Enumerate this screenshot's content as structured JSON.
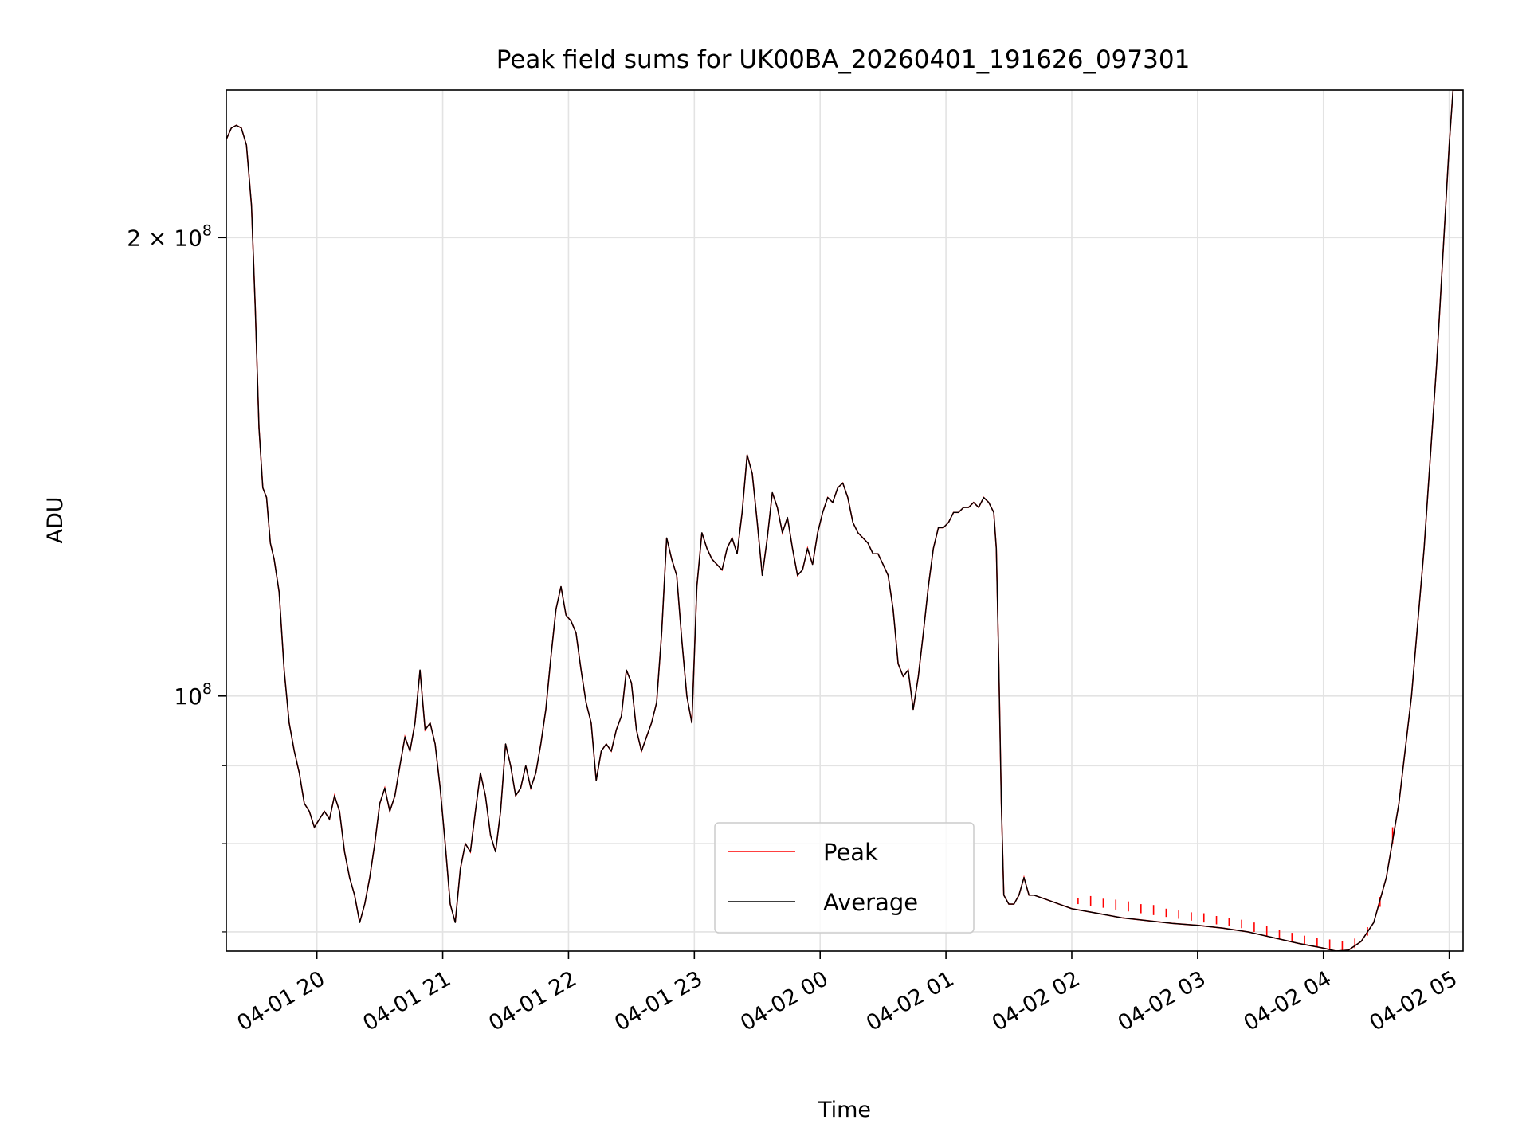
{
  "chart_data": {
    "type": "line",
    "title": "Peak field sums for UK00BA_20260401_191626_097301",
    "xlabel": "Time",
    "ylabel": "ADU",
    "yscale": "log",
    "x_unit": "hours since 2026-04-01 00:00",
    "xlim": [
      19.28,
      29.11
    ],
    "ylim": [
      68000000,
      250000000
    ],
    "grid": true,
    "legend_position": "lower center",
    "x_ticks": [
      {
        "value": 20,
        "label": "04-01 20"
      },
      {
        "value": 21,
        "label": "04-01 21"
      },
      {
        "value": 22,
        "label": "04-01 22"
      },
      {
        "value": 23,
        "label": "04-01 23"
      },
      {
        "value": 24,
        "label": "04-02 00"
      },
      {
        "value": 25,
        "label": "04-02 01"
      },
      {
        "value": 26,
        "label": "04-02 02"
      },
      {
        "value": 27,
        "label": "04-02 03"
      },
      {
        "value": 28,
        "label": "04-02 04"
      },
      {
        "value": 29,
        "label": "04-02 05"
      }
    ],
    "y_major_ticks": [
      {
        "value": 100000000,
        "base": "10",
        "exp": "8"
      },
      {
        "value": 200000000,
        "base": "2 × 10",
        "exp": "8"
      }
    ],
    "y_minor_ticks": [
      70000000,
      80000000,
      90000000
    ],
    "series": [
      {
        "name": "Average",
        "color": "#000000",
        "points": [
          [
            19.28,
            232000000
          ],
          [
            19.32,
            236000000
          ],
          [
            19.36,
            237000000
          ],
          [
            19.4,
            236000000
          ],
          [
            19.44,
            230000000
          ],
          [
            19.48,
            210000000
          ],
          [
            19.51,
            180000000
          ],
          [
            19.54,
            150000000
          ],
          [
            19.57,
            137000000
          ],
          [
            19.6,
            135000000
          ],
          [
            19.63,
            126000000
          ],
          [
            19.66,
            123000000
          ],
          [
            19.7,
            117000000
          ],
          [
            19.74,
            104000000
          ],
          [
            19.78,
            96000000
          ],
          [
            19.82,
            92000000
          ],
          [
            19.86,
            89000000
          ],
          [
            19.9,
            85000000
          ],
          [
            19.94,
            84000000
          ],
          [
            19.98,
            82000000
          ],
          [
            20.02,
            83000000
          ],
          [
            20.06,
            84000000
          ],
          [
            20.1,
            83000000
          ],
          [
            20.14,
            86000000
          ],
          [
            20.18,
            84000000
          ],
          [
            20.22,
            79000000
          ],
          [
            20.26,
            76000000
          ],
          [
            20.3,
            74000000
          ],
          [
            20.34,
            71000000
          ],
          [
            20.38,
            73000000
          ],
          [
            20.42,
            76000000
          ],
          [
            20.46,
            80000000
          ],
          [
            20.5,
            85000000
          ],
          [
            20.54,
            87000000
          ],
          [
            20.58,
            84000000
          ],
          [
            20.62,
            86000000
          ],
          [
            20.66,
            90000000
          ],
          [
            20.7,
            94000000
          ],
          [
            20.74,
            92000000
          ],
          [
            20.78,
            96000000
          ],
          [
            20.82,
            104000000
          ],
          [
            20.86,
            95000000
          ],
          [
            20.9,
            96000000
          ],
          [
            20.94,
            93000000
          ],
          [
            20.98,
            87000000
          ],
          [
            21.02,
            80000000
          ],
          [
            21.06,
            73000000
          ],
          [
            21.1,
            71000000
          ],
          [
            21.14,
            77000000
          ],
          [
            21.18,
            80000000
          ],
          [
            21.22,
            79000000
          ],
          [
            21.26,
            84000000
          ],
          [
            21.3,
            89000000
          ],
          [
            21.34,
            86000000
          ],
          [
            21.38,
            81000000
          ],
          [
            21.42,
            79000000
          ],
          [
            21.46,
            84000000
          ],
          [
            21.5,
            93000000
          ],
          [
            21.54,
            90000000
          ],
          [
            21.58,
            86000000
          ],
          [
            21.62,
            87000000
          ],
          [
            21.66,
            90000000
          ],
          [
            21.7,
            87000000
          ],
          [
            21.74,
            89000000
          ],
          [
            21.78,
            93000000
          ],
          [
            21.82,
            98000000
          ],
          [
            21.86,
            106000000
          ],
          [
            21.9,
            114000000
          ],
          [
            21.94,
            118000000
          ],
          [
            21.98,
            113000000
          ],
          [
            22.02,
            112000000
          ],
          [
            22.06,
            110000000
          ],
          [
            22.1,
            104000000
          ],
          [
            22.14,
            99000000
          ],
          [
            22.18,
            96000000
          ],
          [
            22.22,
            88000000
          ],
          [
            22.26,
            92000000
          ],
          [
            22.3,
            93000000
          ],
          [
            22.34,
            92000000
          ],
          [
            22.38,
            95000000
          ],
          [
            22.42,
            97000000
          ],
          [
            22.46,
            104000000
          ],
          [
            22.5,
            102000000
          ],
          [
            22.54,
            95000000
          ],
          [
            22.58,
            92000000
          ],
          [
            22.62,
            94000000
          ],
          [
            22.66,
            96000000
          ],
          [
            22.7,
            99000000
          ],
          [
            22.74,
            110000000
          ],
          [
            22.78,
            127000000
          ],
          [
            22.82,
            123000000
          ],
          [
            22.86,
            120000000
          ],
          [
            22.9,
            109000000
          ],
          [
            22.94,
            100000000
          ],
          [
            22.98,
            96000000
          ],
          [
            23.02,
            118000000
          ],
          [
            23.06,
            128000000
          ],
          [
            23.1,
            125000000
          ],
          [
            23.14,
            123000000
          ],
          [
            23.18,
            122000000
          ],
          [
            23.22,
            121000000
          ],
          [
            23.26,
            125000000
          ],
          [
            23.3,
            127000000
          ],
          [
            23.34,
            124000000
          ],
          [
            23.38,
            132000000
          ],
          [
            23.42,
            144000000
          ],
          [
            23.46,
            140000000
          ],
          [
            23.5,
            130000000
          ],
          [
            23.54,
            120000000
          ],
          [
            23.58,
            127000000
          ],
          [
            23.62,
            136000000
          ],
          [
            23.66,
            133000000
          ],
          [
            23.7,
            128000000
          ],
          [
            23.74,
            131000000
          ],
          [
            23.78,
            125000000
          ],
          [
            23.82,
            120000000
          ],
          [
            23.86,
            121000000
          ],
          [
            23.9,
            125000000
          ],
          [
            23.94,
            122000000
          ],
          [
            23.98,
            128000000
          ],
          [
            24.02,
            132000000
          ],
          [
            24.06,
            135000000
          ],
          [
            24.1,
            134000000
          ],
          [
            24.14,
            137000000
          ],
          [
            24.18,
            138000000
          ],
          [
            24.22,
            135000000
          ],
          [
            24.26,
            130000000
          ],
          [
            24.3,
            128000000
          ],
          [
            24.34,
            127000000
          ],
          [
            24.38,
            126000000
          ],
          [
            24.42,
            124000000
          ],
          [
            24.46,
            124000000
          ],
          [
            24.5,
            122000000
          ],
          [
            24.54,
            120000000
          ],
          [
            24.58,
            114000000
          ],
          [
            24.62,
            105000000
          ],
          [
            24.66,
            103000000
          ],
          [
            24.7,
            104000000
          ],
          [
            24.74,
            98000000
          ],
          [
            24.78,
            103000000
          ],
          [
            24.82,
            110000000
          ],
          [
            24.86,
            118000000
          ],
          [
            24.9,
            125000000
          ],
          [
            24.94,
            129000000
          ],
          [
            24.98,
            129000000
          ],
          [
            25.02,
            130000000
          ],
          [
            25.06,
            132000000
          ],
          [
            25.1,
            132000000
          ],
          [
            25.14,
            133000000
          ],
          [
            25.18,
            133000000
          ],
          [
            25.22,
            134000000
          ],
          [
            25.26,
            133000000
          ],
          [
            25.3,
            135000000
          ],
          [
            25.34,
            134000000
          ],
          [
            25.38,
            132000000
          ],
          [
            25.4,
            125000000
          ],
          [
            25.42,
            105000000
          ],
          [
            25.44,
            85000000
          ],
          [
            25.46,
            74000000
          ],
          [
            25.5,
            73000000
          ],
          [
            25.54,
            73000000
          ],
          [
            25.58,
            74000000
          ],
          [
            25.62,
            76000000
          ],
          [
            25.66,
            74000000
          ],
          [
            25.7,
            74000000
          ],
          [
            25.8,
            73500000
          ],
          [
            25.9,
            73000000
          ],
          [
            26.0,
            72500000
          ],
          [
            26.2,
            72000000
          ],
          [
            26.4,
            71500000
          ],
          [
            26.6,
            71200000
          ],
          [
            26.8,
            70900000
          ],
          [
            27.0,
            70700000
          ],
          [
            27.2,
            70400000
          ],
          [
            27.4,
            70000000
          ],
          [
            27.6,
            69400000
          ],
          [
            27.8,
            68800000
          ],
          [
            28.0,
            68300000
          ],
          [
            28.1,
            68000000
          ],
          [
            28.2,
            68100000
          ],
          [
            28.3,
            69000000
          ],
          [
            28.4,
            71000000
          ],
          [
            28.5,
            76000000
          ],
          [
            28.6,
            85000000
          ],
          [
            28.7,
            100000000
          ],
          [
            28.8,
            125000000
          ],
          [
            28.9,
            165000000
          ],
          [
            29.0,
            230000000
          ],
          [
            29.03,
            250000000
          ],
          [
            29.11,
            250000000
          ]
        ]
      },
      {
        "name": "Peak",
        "color": "#ff0000",
        "spikes": [
          [
            26.05,
            73000000,
            73700000
          ],
          [
            26.15,
            72800000,
            73900000
          ],
          [
            26.25,
            72600000,
            73600000
          ],
          [
            26.35,
            72400000,
            73500000
          ],
          [
            26.45,
            72200000,
            73300000
          ],
          [
            26.55,
            72000000,
            73000000
          ],
          [
            26.65,
            71800000,
            72900000
          ],
          [
            26.75,
            71600000,
            72500000
          ],
          [
            26.85,
            71400000,
            72300000
          ],
          [
            26.95,
            71200000,
            72100000
          ],
          [
            27.05,
            71000000,
            72000000
          ],
          [
            27.15,
            70800000,
            71700000
          ],
          [
            27.25,
            70600000,
            71500000
          ],
          [
            27.35,
            70400000,
            71300000
          ],
          [
            27.45,
            70000000,
            71000000
          ],
          [
            27.55,
            69600000,
            70600000
          ],
          [
            27.65,
            69300000,
            70200000
          ],
          [
            27.75,
            69000000,
            69900000
          ],
          [
            27.85,
            68700000,
            69600000
          ],
          [
            27.95,
            68400000,
            69400000
          ],
          [
            28.05,
            68200000,
            69200000
          ],
          [
            28.15,
            68050000,
            69000000
          ],
          [
            28.25,
            68300000,
            69300000
          ],
          [
            28.35,
            69600000,
            70500000
          ],
          [
            28.45,
            72700000,
            73800000
          ],
          [
            28.55,
            80000000,
            82000000
          ]
        ]
      }
    ]
  },
  "legend": {
    "items": [
      {
        "label": "Peak",
        "color": "#ff0000"
      },
      {
        "label": "Average",
        "color": "#000000"
      }
    ]
  }
}
